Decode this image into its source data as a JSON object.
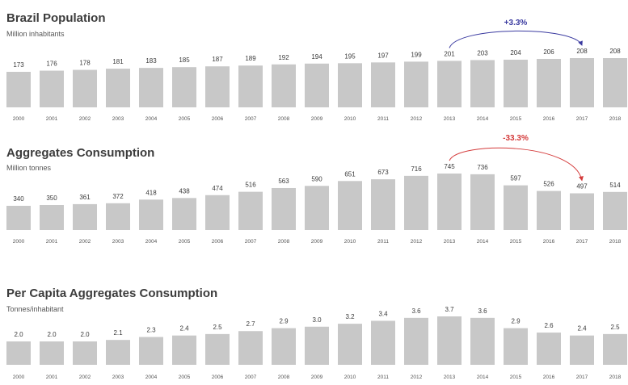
{
  "chart_data": [
    {
      "type": "bar",
      "title": "Brazil Population",
      "subtitle": "Million inhabitants",
      "categories": [
        "2000",
        "2001",
        "2002",
        "2003",
        "2004",
        "2005",
        "2006",
        "2007",
        "2008",
        "2009",
        "2010",
        "2011",
        "2012",
        "2013",
        "2014",
        "2015",
        "2016",
        "2017",
        "2018"
      ],
      "values": [
        173,
        176,
        178,
        181,
        183,
        185,
        187,
        189,
        192,
        194,
        195,
        197,
        199,
        201,
        203,
        204,
        206,
        208,
        208
      ],
      "value_labels": [
        "173",
        "176",
        "178",
        "181",
        "183",
        "185",
        "187",
        "189",
        "192",
        "194",
        "195",
        "197",
        "199",
        "201",
        "203",
        "204",
        "206",
        "208",
        "208"
      ],
      "annotation": {
        "text": "+3.3%",
        "from": "2013",
        "to": "2017",
        "color": "#3a3aa0"
      },
      "bar_color": "#c8c8c8",
      "grid": false
    },
    {
      "type": "bar",
      "title": "Aggregates Consumption",
      "subtitle": "Million tonnes",
      "categories": [
        "2000",
        "2001",
        "2002",
        "2003",
        "2004",
        "2005",
        "2006",
        "2007",
        "2008",
        "2009",
        "2010",
        "2011",
        "2012",
        "2013",
        "2014",
        "2015",
        "2016",
        "2017",
        "2018"
      ],
      "values": [
        340,
        350,
        361,
        372,
        418,
        438,
        474,
        516,
        563,
        590,
        651,
        673,
        716,
        745,
        736,
        597,
        526,
        497,
        514
      ],
      "value_labels": [
        "340",
        "350",
        "361",
        "372",
        "418",
        "438",
        "474",
        "516",
        "563",
        "590",
        "651",
        "673",
        "716",
        "745",
        "736",
        "597",
        "526",
        "497",
        "514"
      ],
      "annotation": {
        "text": "-33.3%",
        "from": "2013",
        "to": "2017",
        "color": "#d43a3a"
      },
      "bar_color": "#c8c8c8",
      "grid": false
    },
    {
      "type": "bar",
      "title": "Per Capita Aggregates Consumption",
      "subtitle": "Tonnes/inhabitant",
      "categories": [
        "2000",
        "2001",
        "2002",
        "2003",
        "2004",
        "2005",
        "2006",
        "2007",
        "2008",
        "2009",
        "2010",
        "2011",
        "2012",
        "2013",
        "2014",
        "2015",
        "2016",
        "2017",
        "2018"
      ],
      "values": [
        2.0,
        2.0,
        2.0,
        2.1,
        2.3,
        2.4,
        2.5,
        2.7,
        2.9,
        3.0,
        3.2,
        3.4,
        3.6,
        3.7,
        3.6,
        2.9,
        2.6,
        2.4,
        2.5
      ],
      "value_labels": [
        "2.0",
        "2.0",
        "2.0",
        "2.1",
        "2.3",
        "2.4",
        "2.5",
        "2.7",
        "2.9",
        "3.0",
        "3.2",
        "3.4",
        "3.6",
        "3.7",
        "3.6",
        "2.9",
        "2.6",
        "2.4",
        "2.5"
      ],
      "bar_color": "#c8c8c8",
      "grid": false
    }
  ]
}
